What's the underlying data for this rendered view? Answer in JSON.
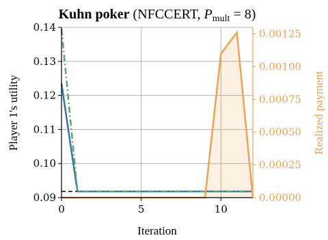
{
  "chart_data": {
    "type": "line",
    "title_bold": "Kuhn poker",
    "title_rest": " (NFCCERT, ",
    "title_var": "P",
    "title_sub": "mult",
    "title_eq": " = 8)",
    "xlabel": "Iteration",
    "ylabel": "Player 1's utility",
    "y2label": "Realized payment",
    "xlim": [
      0,
      12
    ],
    "ylim": [
      0.09,
      0.14
    ],
    "y2lim": [
      0.0,
      0.0013
    ],
    "xticks": [
      0,
      5,
      10
    ],
    "xtick_labels": [
      "0",
      "5",
      "10"
    ],
    "yticks": [
      0.09,
      0.1,
      0.11,
      0.12,
      0.13,
      0.14
    ],
    "ytick_labels": [
      "0.09",
      "0.10",
      "0.11",
      "0.12",
      "0.13",
      "0.14"
    ],
    "y2ticks": [
      0.0,
      0.00025,
      0.0005,
      0.00075,
      0.001,
      0.00125
    ],
    "y2tick_labels": [
      "0.00000",
      "0.00025",
      "0.00050",
      "0.00075",
      "0.00100",
      "0.00125"
    ],
    "grid": true,
    "series": [
      {
        "axis": "left",
        "style": "solid",
        "color": "#3a6fb0",
        "x": [
          0,
          1,
          2,
          3,
          4,
          5,
          6,
          7,
          8,
          9,
          10,
          11,
          12
        ],
        "y": [
          0.1235,
          0.0918,
          0.0918,
          0.0918,
          0.0918,
          0.0918,
          0.0918,
          0.0918,
          0.0918,
          0.0918,
          0.0918,
          0.0918,
          0.0918
        ]
      },
      {
        "axis": "left",
        "style": "dashdot",
        "color": "#55a868",
        "x": [
          0,
          1,
          2,
          3,
          4,
          5,
          6,
          7,
          8,
          9,
          10,
          11,
          12
        ],
        "y": [
          0.1395,
          0.0918,
          0.0918,
          0.0918,
          0.0918,
          0.0918,
          0.0918,
          0.0918,
          0.0918,
          0.0918,
          0.0918,
          0.0918,
          0.0918
        ]
      },
      {
        "axis": "right",
        "style": "solid-fill",
        "color": "#f4a14d",
        "x": [
          0,
          1,
          2,
          3,
          4,
          5,
          6,
          7,
          8,
          9,
          10,
          11,
          12
        ],
        "y": [
          0.0,
          0.0,
          0.0,
          0.0,
          0.0,
          0.0,
          0.0,
          0.0,
          0.0,
          0.0,
          0.0011,
          0.00126,
          0.0
        ]
      }
    ],
    "reference_line": {
      "axis": "left",
      "y": 0.0918,
      "style": "dashed",
      "color": "#000000"
    }
  }
}
